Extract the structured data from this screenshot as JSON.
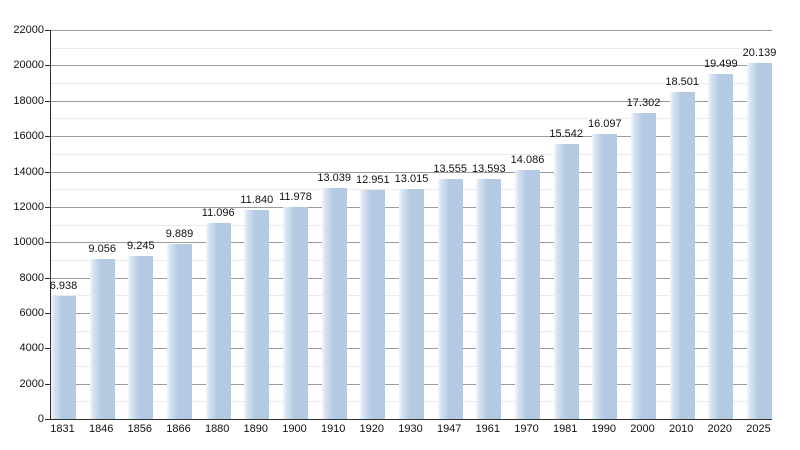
{
  "chart_data": {
    "type": "bar",
    "title": "",
    "xlabel": "",
    "ylabel": "",
    "categories": [
      "1831",
      "1846",
      "1856",
      "1866",
      "1880",
      "1890",
      "1900",
      "1910",
      "1920",
      "1930",
      "1947",
      "1961",
      "1970",
      "1981",
      "1990",
      "2000",
      "2010",
      "2020",
      "2025"
    ],
    "values": [
      6938,
      9056,
      9245,
      9889,
      11096,
      11840,
      11978,
      13039,
      12951,
      13015,
      13555,
      13593,
      14086,
      15542,
      16097,
      17302,
      18501,
      19499,
      20139
    ],
    "value_labels": [
      "6.938",
      "9.056",
      "9.245",
      "9.889",
      "11.096",
      "11.840",
      "11.978",
      "13.039",
      "12.951",
      "13.015",
      "13.555",
      "13.593",
      "14.086",
      "15.542",
      "16.097",
      "17.302",
      "18.501",
      "19.499",
      "20.139"
    ],
    "ylim": [
      0,
      22000
    ],
    "y_major_step": 2000,
    "y_minor_step": 1000,
    "y_tick_labels": [
      "0",
      "2000",
      "4000",
      "6000",
      "8000",
      "10000",
      "12000",
      "14000",
      "16000",
      "18000",
      "20000",
      "22000"
    ],
    "grid": true,
    "legend": false,
    "colors": {
      "background": "#ffffff",
      "bar_fill": "#b3cae2",
      "bar_mid": "#d4e1f0",
      "bar_light": "#f2f6fb",
      "major_gridline": "#9b9b9b",
      "minor_gridline": "#ebebeb",
      "axis": "#2e2e2e",
      "text": "#111111"
    }
  }
}
